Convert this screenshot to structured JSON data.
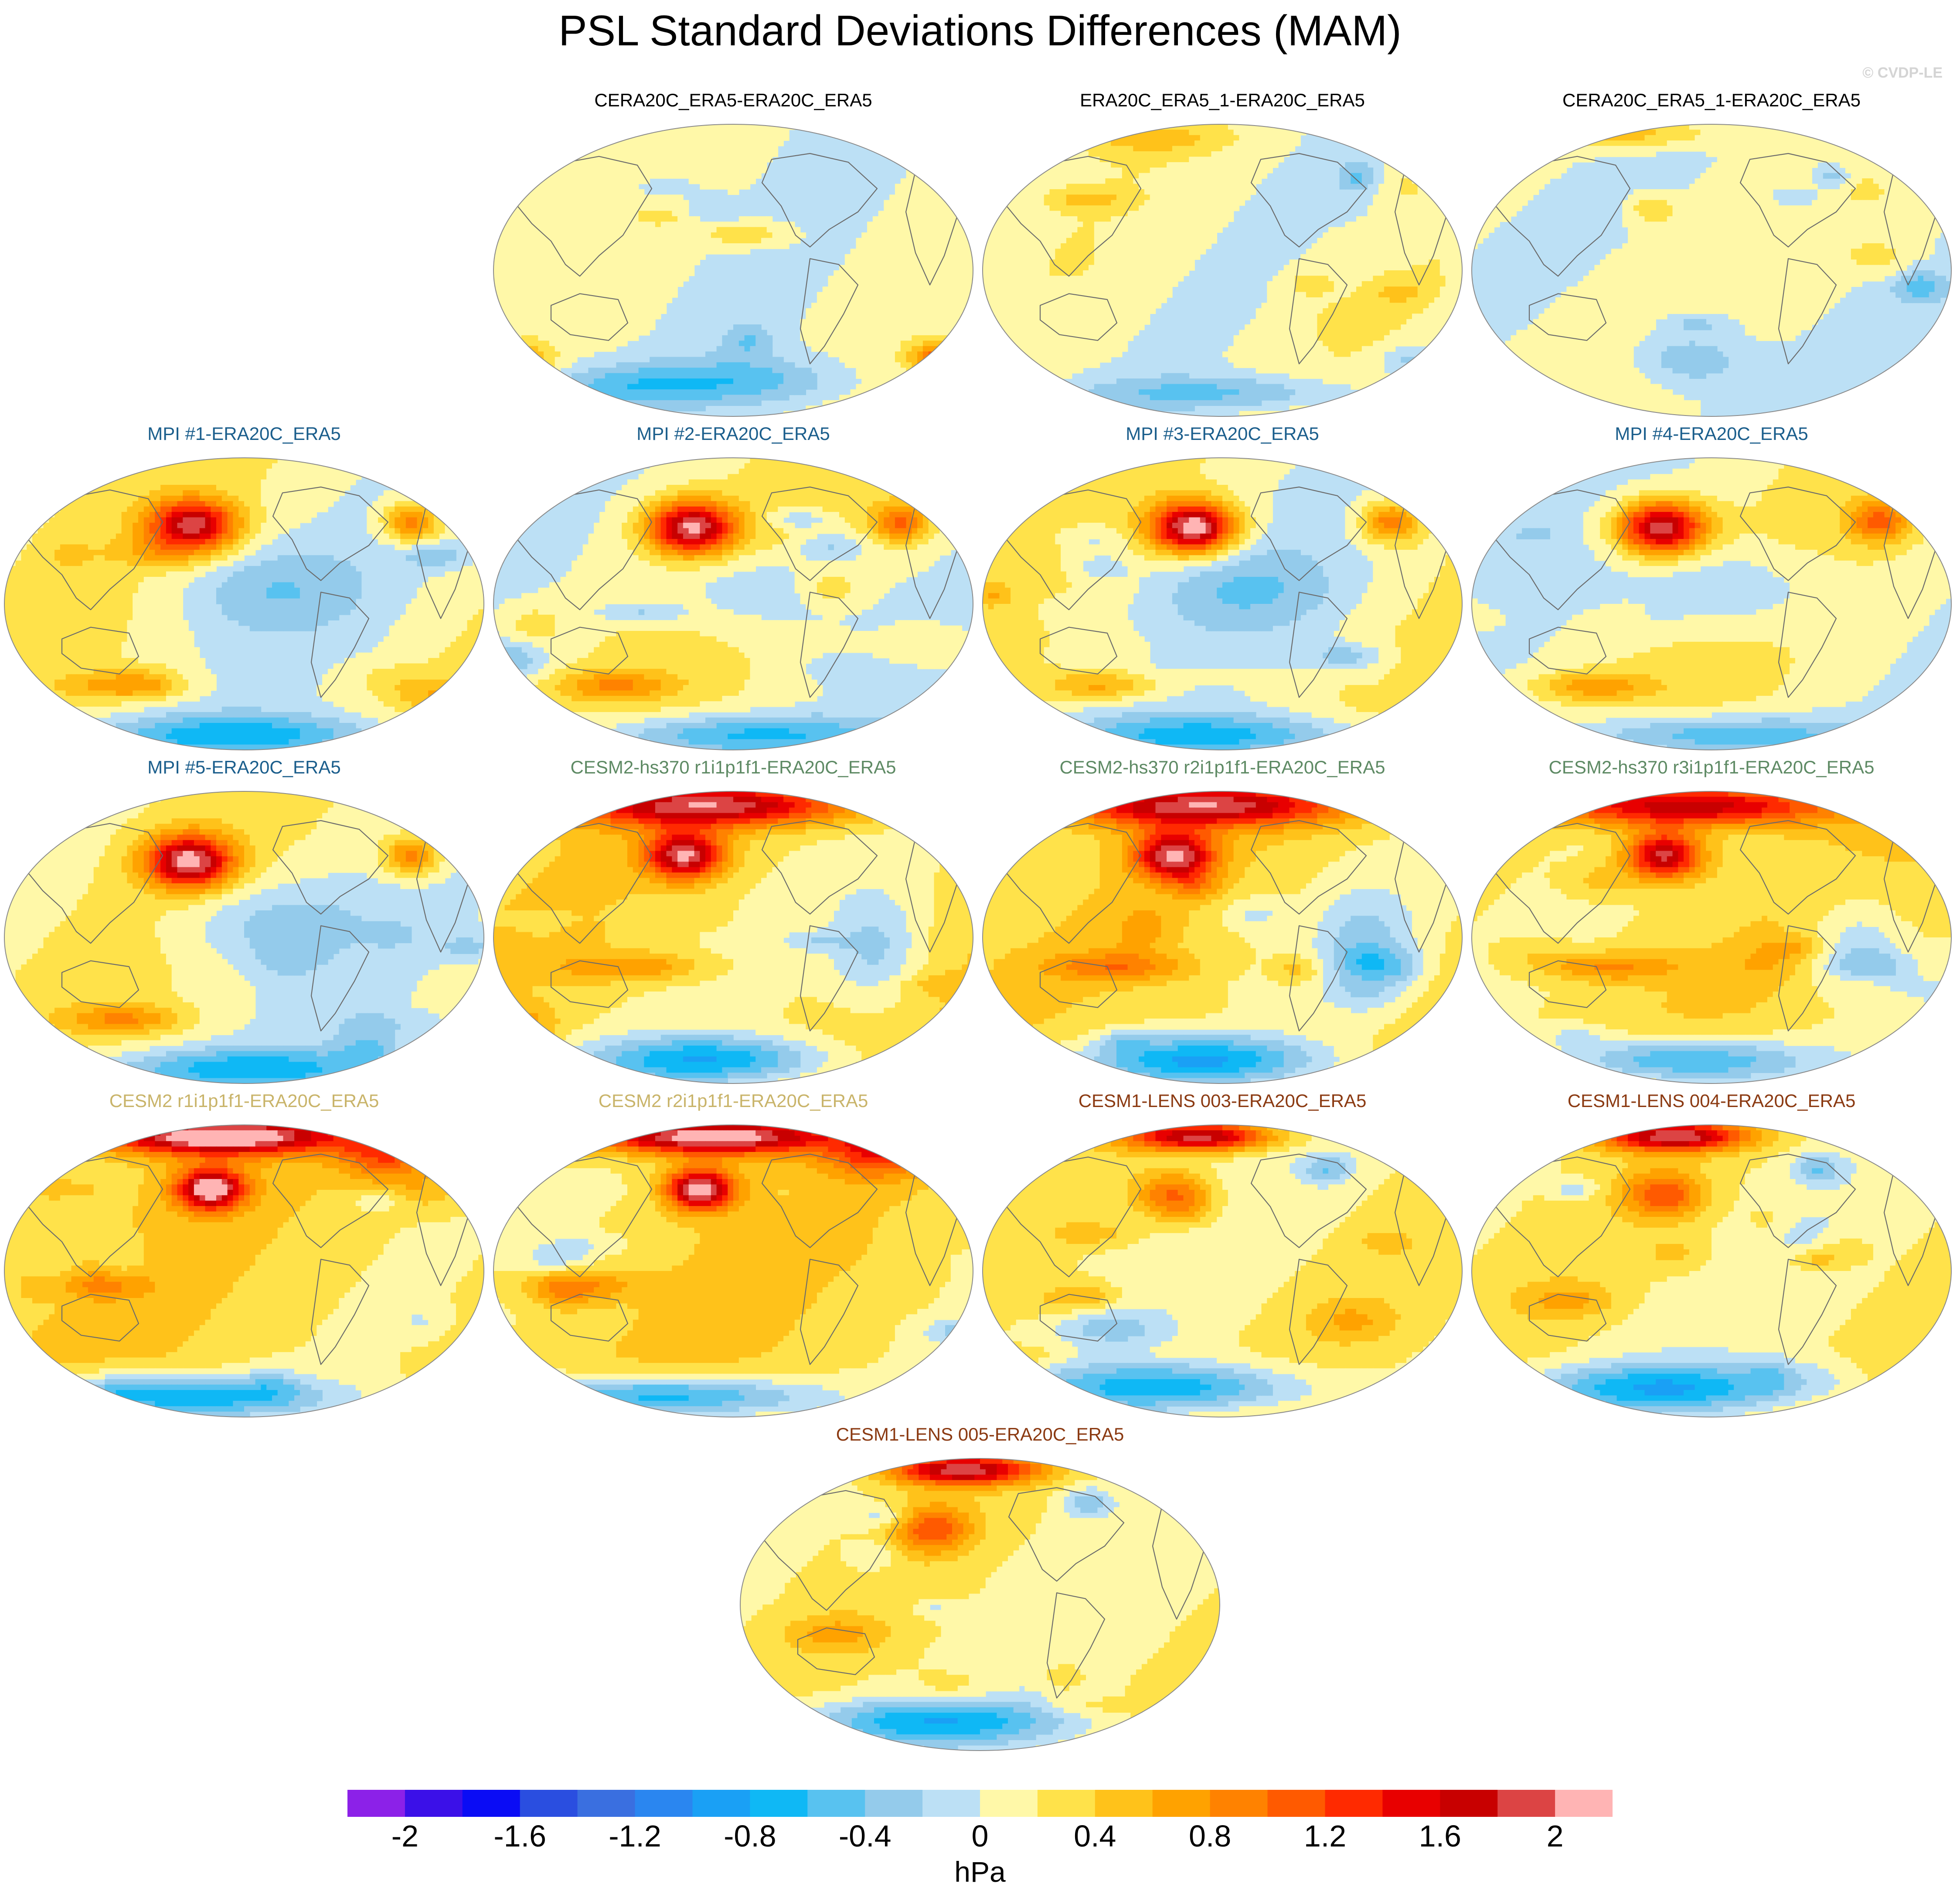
{
  "title": "PSL Standard Deviations Differences (MAM)",
  "watermark": "© CVDP-LE",
  "colorbar": {
    "units": "hPa",
    "levels": [
      -2.2,
      -2,
      -1.8,
      -1.6,
      -1.4,
      -1.2,
      -1,
      -0.8,
      -0.6,
      -0.4,
      -0.2,
      0,
      0.2,
      0.4,
      0.6,
      0.8,
      1,
      1.2,
      1.4,
      1.6,
      1.8,
      2,
      2.2
    ],
    "tick_labels": [
      "-2",
      "-1.6",
      "-1.2",
      "-0.8",
      "-0.4",
      "0",
      "0.4",
      "0.8",
      "1.2",
      "1.6",
      "2"
    ],
    "colors": [
      "#8c21e8",
      "#3b10e8",
      "#0a0cf5",
      "#2a4ee0",
      "#3a6fe0",
      "#2a86f0",
      "#1aa0f5",
      "#0fb8f5",
      "#58c2f0",
      "#94cbeb",
      "#bce0f5",
      "#fff8a8",
      "#ffe24a",
      "#ffc21a",
      "#ffa200",
      "#ff8200",
      "#ff5a00",
      "#ff2a00",
      "#e80000",
      "#c80000",
      "#dc4444",
      "#ffb4b4"
    ]
  },
  "map_style": {
    "ocean_background": "#bce0f5",
    "coast_color": "#6b6b6b",
    "border_color": "#8a8a8a"
  },
  "panels": [
    {
      "title": "CERA20C_ERA5-ERA20C_ERA5",
      "title_color": "#000000",
      "pattern": "obs1"
    },
    {
      "title": "ERA20C_ERA5_1-ERA20C_ERA5",
      "title_color": "#000000",
      "pattern": "obs2"
    },
    {
      "title": "CERA20C_ERA5_1-ERA20C_ERA5",
      "title_color": "#000000",
      "pattern": "obs3"
    },
    {
      "title": "MPI #1-ERA20C_ERA5",
      "title_color": "#1b5e8c",
      "pattern": "mpi"
    },
    {
      "title": "MPI #2-ERA20C_ERA5",
      "title_color": "#1b5e8c",
      "pattern": "mpi"
    },
    {
      "title": "MPI #3-ERA20C_ERA5",
      "title_color": "#1b5e8c",
      "pattern": "mpi"
    },
    {
      "title": "MPI #4-ERA20C_ERA5",
      "title_color": "#1b5e8c",
      "pattern": "mpi"
    },
    {
      "title": "MPI #5-ERA20C_ERA5",
      "title_color": "#1b5e8c",
      "pattern": "mpi"
    },
    {
      "title": "CESM2-hs370 r1i1p1f1-ERA20C_ERA5",
      "title_color": "#5e8a64",
      "pattern": "hs370"
    },
    {
      "title": "CESM2-hs370 r2i1p1f1-ERA20C_ERA5",
      "title_color": "#5e8a64",
      "pattern": "hs370"
    },
    {
      "title": "CESM2-hs370 r3i1p1f1-ERA20C_ERA5",
      "title_color": "#5e8a64",
      "pattern": "hs370"
    },
    {
      "title": "CESM2 r1i1p1f1-ERA20C_ERA5",
      "title_color": "#c9b46a",
      "pattern": "cesm2"
    },
    {
      "title": "CESM2 r2i1p1f1-ERA20C_ERA5",
      "title_color": "#c9b46a",
      "pattern": "cesm2"
    },
    {
      "title": "CESM1-LENS 003-ERA20C_ERA5",
      "title_color": "#8b3a12",
      "pattern": "lens"
    },
    {
      "title": "CESM1-LENS 004-ERA20C_ERA5",
      "title_color": "#8b3a12",
      "pattern": "lens"
    },
    {
      "title": "CESM1-LENS 005-ERA20C_ERA5",
      "title_color": "#8b3a12",
      "pattern": "lens"
    }
  ]
}
